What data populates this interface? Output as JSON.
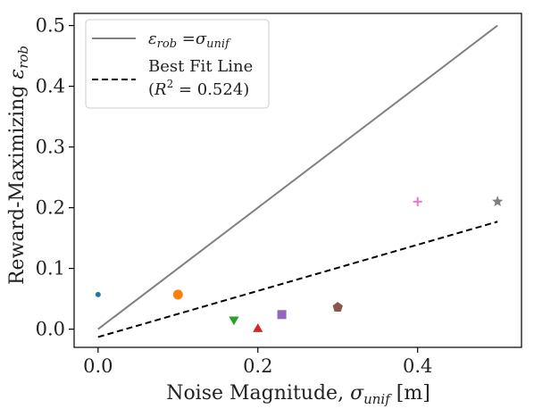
{
  "chart_data": {
    "type": "scatter",
    "xlabel": {
      "main": "Noise Magnitude, ",
      "sym": "σ",
      "sub": "unif",
      "unit": " [m]"
    },
    "ylabel": {
      "main": "Reward-Maximizing ",
      "sym": "ε",
      "sub": "rob"
    },
    "xlim": [
      -0.03,
      0.53
    ],
    "ylim": [
      -0.03,
      0.52
    ],
    "xticks": [
      0.0,
      0.2,
      0.4
    ],
    "xtick_labels": [
      "0.0",
      "0.2",
      "0.4"
    ],
    "yticks": [
      0.0,
      0.1,
      0.2,
      0.3,
      0.4,
      0.5
    ],
    "ytick_labels": [
      "0.0",
      "0.1",
      "0.2",
      "0.3",
      "0.4",
      "0.5"
    ],
    "grid": false,
    "legend_position": "top-left",
    "identity_line": {
      "x": [
        0.0,
        0.5
      ],
      "y": [
        0.0,
        0.5
      ],
      "color": "#808080",
      "style": "solid",
      "label": {
        "a_sym": "ε",
        "a_sub": "rob",
        "eq": " =",
        "b_sym": "σ",
        "b_sub": "unif"
      }
    },
    "fit_line": {
      "x": [
        0.0,
        0.5
      ],
      "y": [
        -0.013,
        0.177
      ],
      "color": "#000000",
      "style": "dashed",
      "label_line1": "Best Fit Line",
      "label_line2": {
        "open": "(",
        "sym": "R",
        "sup": "2",
        "rest": " = 0.524)"
      }
    },
    "points": [
      {
        "x": 0.0,
        "y": 0.057,
        "marker": "point",
        "color": "#1f77b4"
      },
      {
        "x": 0.1,
        "y": 0.057,
        "marker": "circle",
        "color": "#ff7f0e"
      },
      {
        "x": 0.17,
        "y": 0.016,
        "marker": "triangle-down",
        "color": "#2ca02c"
      },
      {
        "x": 0.2,
        "y": 0.0,
        "marker": "triangle-up",
        "color": "#d62728"
      },
      {
        "x": 0.23,
        "y": 0.024,
        "marker": "square",
        "color": "#9467bd"
      },
      {
        "x": 0.3,
        "y": 0.036,
        "marker": "pentagon",
        "color": "#8c564b"
      },
      {
        "x": 0.4,
        "y": 0.21,
        "marker": "plus",
        "color": "#e377c2"
      },
      {
        "x": 0.5,
        "y": 0.21,
        "marker": "star",
        "color": "#7f7f7f"
      }
    ]
  }
}
